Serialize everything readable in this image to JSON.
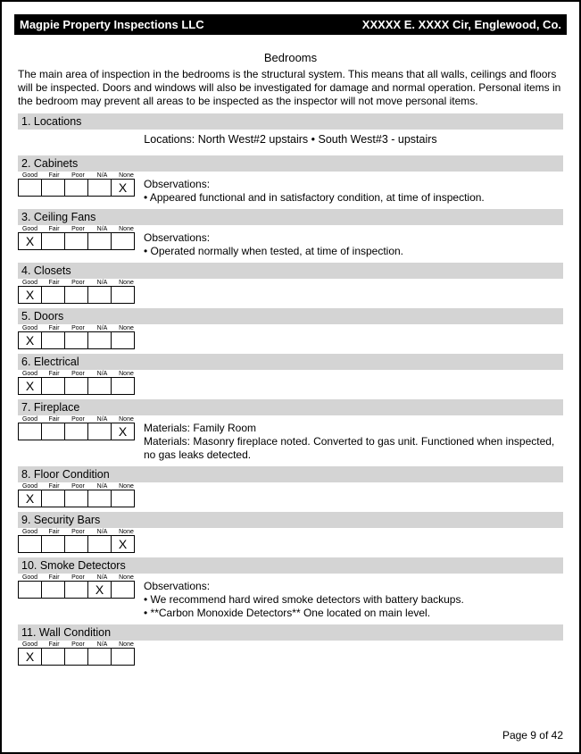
{
  "header": {
    "company": "Magpie Property Inspections LLC",
    "address": "XXXXX E. XXXX Cir, Englewood, Co."
  },
  "title": "Bedrooms",
  "intro": "The main area of inspection in the bedrooms is the structural system. This means that all walls, ceilings and floors will be inspected. Doors and windows will also be investigated for damage and normal operation. Personal items in the bedroom may prevent all areas to be inspected as the inspector will not move personal items.",
  "rating_columns": [
    "Good",
    "Fair",
    "Poor",
    "N/A",
    "None"
  ],
  "sections": [
    {
      "num": "1.",
      "title": "Locations",
      "locations_text": "Locations: North West#2 upstairs • South West#3 - upstairs"
    },
    {
      "num": "2.",
      "title": "Cabinets",
      "rating": "None",
      "notes": "Observations:\n• Appeared functional and in satisfactory condition, at time of inspection."
    },
    {
      "num": "3.",
      "title": "Ceiling Fans",
      "rating": "Good",
      "notes": "Observations:\n• Operated normally when tested, at time of inspection."
    },
    {
      "num": "4.",
      "title": "Closets",
      "rating": "Good",
      "notes": ""
    },
    {
      "num": "5.",
      "title": "Doors",
      "rating": "Good",
      "notes": ""
    },
    {
      "num": "6.",
      "title": "Electrical",
      "rating": "Good",
      "notes": ""
    },
    {
      "num": "7.",
      "title": "Fireplace",
      "rating": "None",
      "notes": "Materials: Family Room\nMaterials: Masonry fireplace noted. Converted to gas unit. Functioned when inspected, no gas leaks detected."
    },
    {
      "num": "8.",
      "title": "Floor Condition",
      "rating": "Good",
      "notes": ""
    },
    {
      "num": "9.",
      "title": "Security Bars",
      "rating": "None",
      "notes": ""
    },
    {
      "num": "10.",
      "title": "Smoke Detectors",
      "rating": "N/A",
      "notes": "Observations:\n• We recommend hard wired smoke detectors with battery backups.\n• **Carbon Monoxide Detectors** One located on main level."
    },
    {
      "num": "11.",
      "title": "Wall Condition",
      "rating": "Good",
      "notes": ""
    }
  ],
  "footer": "Page 9 of 42",
  "colors": {
    "header_bg": "#000000",
    "header_fg": "#ffffff",
    "section_bg": "#d4d4d4",
    "border": "#000000"
  }
}
